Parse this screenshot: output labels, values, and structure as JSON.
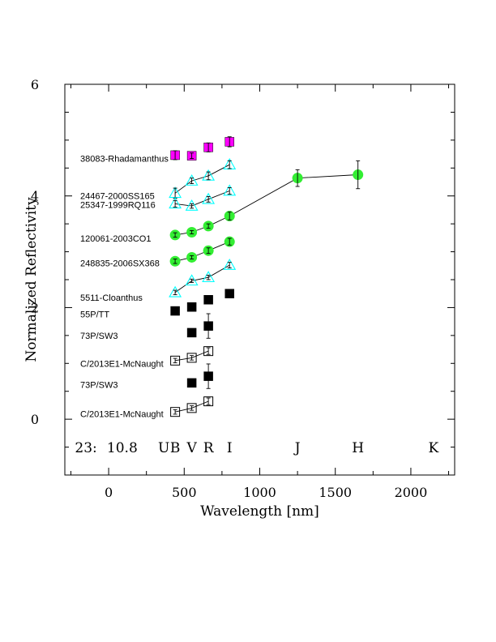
{
  "chart_data": {
    "type": "scatter",
    "xlabel": "Wavelength [nm]",
    "ylabel": "Normalized Reflectivity",
    "xlim": [
      -290,
      2290
    ],
    "ylim": [
      -1,
      6
    ],
    "x_ticks": [
      0,
      500,
      1000,
      1500,
      2000
    ],
    "x_tick_labels": [
      "0",
      "500",
      "1000",
      "1500",
      "2000"
    ],
    "y_ticks": [
      0,
      2,
      4,
      6
    ],
    "y_tick_labels": [
      "0",
      "2",
      "4",
      "6"
    ],
    "grid": false,
    "band_row": {
      "y": -1,
      "prefix": "23:",
      "magnitude": "10.8",
      "bands": [
        {
          "label": "U",
          "x": 365
        },
        {
          "label": "B",
          "x": 440
        },
        {
          "label": "V",
          "x": 550
        },
        {
          "label": "R",
          "x": 660
        },
        {
          "label": "I",
          "x": 800
        },
        {
          "label": "J",
          "x": 1250
        },
        {
          "label": "H",
          "x": 1650
        },
        {
          "label": "K",
          "x": 2150
        }
      ]
    },
    "series": [
      {
        "name": "38083-Rhadamanthus",
        "marker": "square-filled",
        "color": "#ff00ff",
        "connected": false,
        "label_y": 4.67,
        "points": [
          {
            "x": 440,
            "y": 4.73,
            "err": 0.08
          },
          {
            "x": 550,
            "y": 4.72,
            "err": 0.05
          },
          {
            "x": 660,
            "y": 4.87,
            "err": 0.08
          },
          {
            "x": 800,
            "y": 4.97,
            "err": 0.09
          }
        ]
      },
      {
        "name": "24467-2000SS165",
        "marker": "triangle-open",
        "color": "#00ffff",
        "connected": true,
        "label_y": 4.0,
        "points": [
          {
            "x": 440,
            "y": 4.05,
            "err": 0.09
          },
          {
            "x": 550,
            "y": 4.27,
            "err": 0.05
          },
          {
            "x": 660,
            "y": 4.36,
            "err": 0.07
          },
          {
            "x": 800,
            "y": 4.56,
            "err": 0.07
          }
        ]
      },
      {
        "name": "25347-1999RQ116",
        "marker": "triangle-open",
        "color": "#00ffff",
        "connected": true,
        "label_y": 3.84,
        "points": [
          {
            "x": 440,
            "y": 3.86,
            "err": 0.06
          },
          {
            "x": 550,
            "y": 3.82,
            "err": 0.04
          },
          {
            "x": 660,
            "y": 3.94,
            "err": 0.05
          },
          {
            "x": 800,
            "y": 4.09,
            "err": 0.06
          }
        ]
      },
      {
        "name": "120061-2003CO1",
        "marker": "circle-filled",
        "color": "#33ee33",
        "connected": true,
        "label_y": 3.24,
        "points": [
          {
            "x": 440,
            "y": 3.3,
            "err": 0.04
          },
          {
            "x": 550,
            "y": 3.35,
            "err": 0.03
          },
          {
            "x": 660,
            "y": 3.46,
            "err": 0.04
          },
          {
            "x": 800,
            "y": 3.64,
            "err": 0.07
          },
          {
            "x": 1250,
            "y": 4.32,
            "err": 0.15
          },
          {
            "x": 1650,
            "y": 4.38,
            "err": 0.25
          }
        ]
      },
      {
        "name": "248835-2006SX368",
        "marker": "circle-filled",
        "color": "#33ee33",
        "connected": true,
        "label_y": 2.8,
        "points": [
          {
            "x": 440,
            "y": 2.83,
            "err": 0.04
          },
          {
            "x": 550,
            "y": 2.9,
            "err": 0.03
          },
          {
            "x": 660,
            "y": 3.02,
            "err": 0.05
          },
          {
            "x": 800,
            "y": 3.18,
            "err": 0.06
          }
        ]
      },
      {
        "name": "5511-Cloanthus",
        "marker": "triangle-open",
        "color": "#00ffff",
        "connected": true,
        "label_y": 2.18,
        "points": [
          {
            "x": 440,
            "y": 2.27,
            "err": 0.04
          },
          {
            "x": 550,
            "y": 2.48,
            "err": 0.03
          },
          {
            "x": 660,
            "y": 2.54,
            "err": 0.04
          },
          {
            "x": 800,
            "y": 2.76,
            "err": 0.05
          }
        ]
      },
      {
        "name": "55P/TT",
        "marker": "square-filled",
        "color": "#000000",
        "connected": false,
        "label_y": 1.88,
        "points": [
          {
            "x": 440,
            "y": 1.94,
            "err": 0.04
          },
          {
            "x": 550,
            "y": 2.01,
            "err": 0.03
          },
          {
            "x": 660,
            "y": 2.14,
            "err": 0.06
          },
          {
            "x": 800,
            "y": 2.25,
            "err": 0.05
          }
        ]
      },
      {
        "name": "73P/SW3",
        "marker": "square-filled",
        "color": "#000000",
        "connected": false,
        "label_y": 1.5,
        "points": [
          {
            "x": 550,
            "y": 1.55,
            "err": 0.04
          },
          {
            "x": 660,
            "y": 1.67,
            "err": 0.22
          }
        ]
      },
      {
        "name": "C/2013E1-McNaught",
        "marker": "square-open",
        "color": "#000000",
        "connected": true,
        "label_y": 1.0,
        "points": [
          {
            "x": 440,
            "y": 1.05,
            "err": 0.04
          },
          {
            "x": 550,
            "y": 1.1,
            "err": 0.04
          },
          {
            "x": 660,
            "y": 1.22,
            "err": 0.06
          }
        ]
      },
      {
        "name": "73P/SW3",
        "marker": "square-filled",
        "color": "#000000",
        "connected": false,
        "label_y": 0.62,
        "points": [
          {
            "x": 550,
            "y": 0.65,
            "err": 0.04
          },
          {
            "x": 660,
            "y": 0.77,
            "err": 0.22
          }
        ]
      },
      {
        "name": "C/2013E1-McNaught",
        "marker": "square-open",
        "color": "#000000",
        "connected": true,
        "label_y": 0.1,
        "points": [
          {
            "x": 440,
            "y": 0.13,
            "err": 0.04
          },
          {
            "x": 550,
            "y": 0.2,
            "err": 0.04
          },
          {
            "x": 660,
            "y": 0.32,
            "err": 0.06
          }
        ]
      }
    ]
  }
}
